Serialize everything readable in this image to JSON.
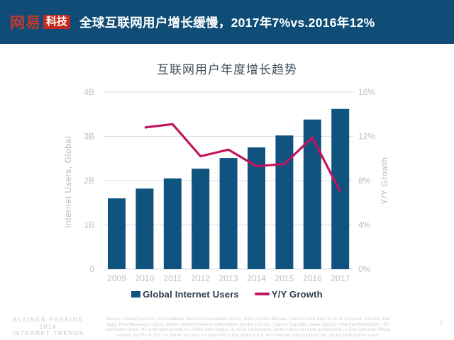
{
  "header": {
    "logo": {
      "brand": "网易",
      "badge": "科技"
    },
    "title": "全球互联网用户增长缓慢，2017年7%vs.2016年12%"
  },
  "chart_data": {
    "type": "bar",
    "title": "互联网用户年度增长趋势",
    "categories": [
      "2009",
      "2010",
      "2011",
      "2012",
      "2013",
      "2014",
      "2015",
      "2016",
      "2017"
    ],
    "series": [
      {
        "name": "Global Internet Users",
        "type": "bar",
        "axis": "left",
        "unit": "B",
        "values": [
          1.6,
          1.82,
          2.05,
          2.27,
          2.51,
          2.75,
          3.02,
          3.38,
          3.62
        ]
      },
      {
        "name": "Y/Y Growth",
        "type": "line",
        "axis": "right",
        "unit": "%",
        "values": [
          null,
          12.8,
          13.1,
          10.2,
          10.8,
          9.3,
          9.5,
          11.9,
          7.0
        ]
      }
    ],
    "left_axis": {
      "label": "Internet Users, Global",
      "ticks": [
        "0",
        "1B",
        "2B",
        "3B",
        "4B"
      ],
      "range": [
        0,
        4
      ]
    },
    "right_axis": {
      "label": "Y/Y Growth",
      "ticks": [
        "0%",
        "4%",
        "8%",
        "12%",
        "16%"
      ],
      "range": [
        0,
        16
      ]
    },
    "legend_position": "bottom",
    "grid": true
  },
  "footer": {
    "brand_lines": [
      "KLEINER PERKINS",
      "2018",
      "INTERNET TRENDS"
    ],
    "source_text": "Source: United Nations / International Telecommunications Union, USA Census Bureau. Internet user data is as of mid-year. Internet user data: Pew Research (USA), China Internet Network Information Center (China), Islamic Republic News Agency / InternetWorldStats / KP estimates (Iran). KP estimates based on IAMAI data (India), & APJII (Indonesia). Note: Historical data (particularly in Sub-Saharan Africa) revised by ITU in 2017 to better account for dual-SIM subscriptions (i.e. two Internet subscriptions per single smartphone user).",
    "page_number": "7"
  },
  "colors": {
    "header_bg": "#0F4D76",
    "bar": "#0F537E",
    "line": "#C2155B",
    "logo_red": "#C22A1F",
    "grid": "#DADEE1",
    "tick_text": "#B9C0C7",
    "legend_text": "#2D3A4A"
  }
}
